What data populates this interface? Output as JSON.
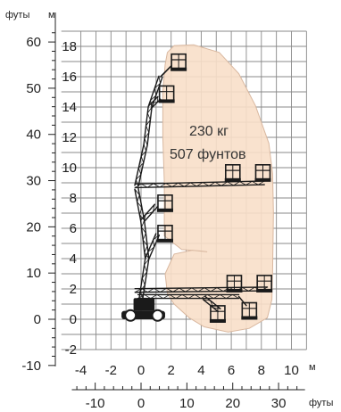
{
  "units": {
    "feet_top": "футы",
    "meters_top": "м",
    "meters_bottom": "м",
    "feet_bottom": "футы"
  },
  "capacity": {
    "kg": "230 кг",
    "lbs": "507 фунтов"
  },
  "axes": {
    "y_meters": {
      "min": -2,
      "max": 18,
      "step": 2,
      "labels": [
        "-2",
        "0",
        "2",
        "4",
        "6",
        "8",
        "10",
        "12",
        "14",
        "16",
        "18"
      ]
    },
    "y_feet": {
      "min": -10,
      "max": 60,
      "step": 10,
      "labels": [
        "-10",
        "0",
        "10",
        "20",
        "30",
        "40",
        "50",
        "60"
      ]
    },
    "x_meters": {
      "min": -4,
      "max": 10,
      "step": 2,
      "labels": [
        "-4",
        "-2",
        "0",
        "2",
        "4",
        "6",
        "8",
        "10"
      ]
    },
    "x_feet": {
      "min": -10,
      "max": 30,
      "step": 10,
      "labels": [
        "-10",
        "0",
        "10",
        "20",
        "30"
      ]
    }
  },
  "colors": {
    "envelope_fill": "#f8dfc9",
    "envelope_stroke": "#d9b8a0",
    "grid": "#888888",
    "machine": "#1a1a1a"
  }
}
